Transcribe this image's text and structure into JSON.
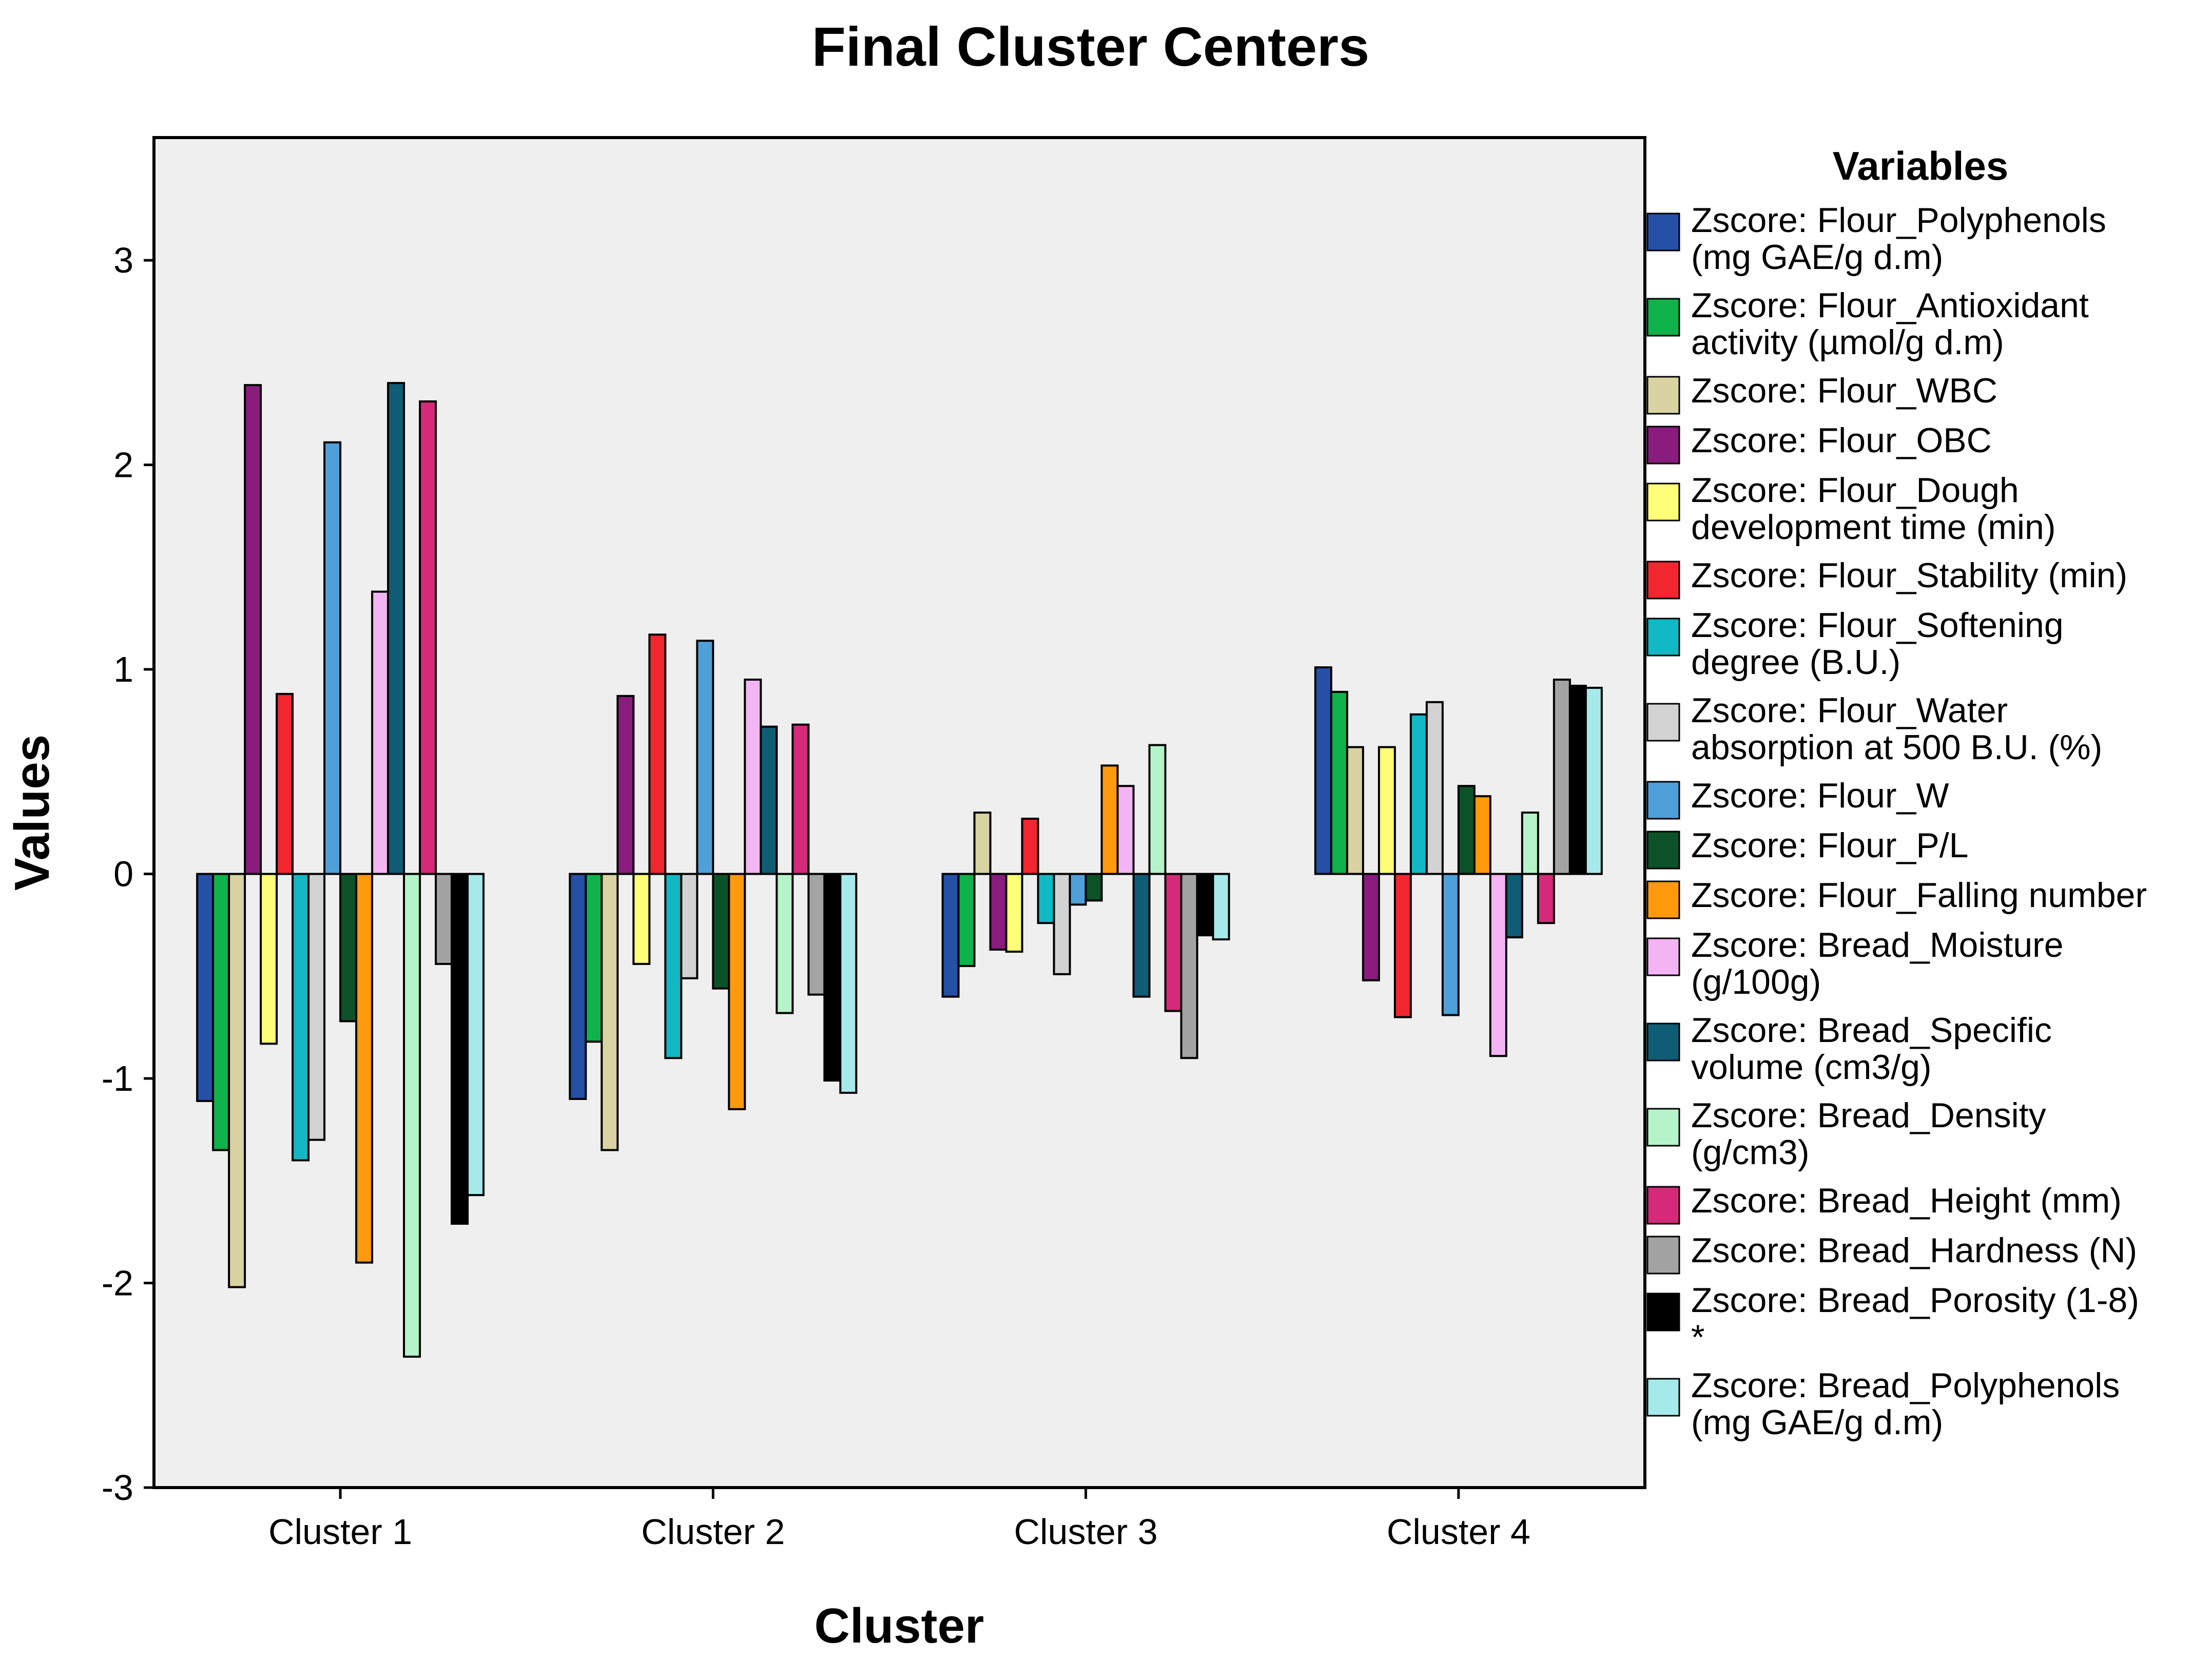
{
  "chart_data": {
    "type": "bar",
    "title": "Final Cluster Centers",
    "xlabel": "Cluster",
    "ylabel": "Values",
    "ylim": [
      -3,
      3.6
    ],
    "yticks": [
      -3,
      -2,
      -1,
      0,
      1,
      2,
      3
    ],
    "ytick_labels": [
      "-3",
      "-2",
      "-1",
      "0",
      "1",
      "2",
      "3"
    ],
    "categories": [
      "Cluster 1",
      "Cluster 2",
      "Cluster 3",
      "Cluster 4"
    ],
    "legend_title": "Variables",
    "legend_position": "right",
    "grid": false,
    "colors": {
      "plot_background": "#efefef",
      "bar_outline": "#000000"
    },
    "series": [
      {
        "name": "Zscore:  Flour_Polyphenols (mg GAE/g d.m)",
        "legend_lines": [
          "Zscore:  Flour_Polyphenols",
          "(mg GAE/g d.m)"
        ],
        "color": "#2450a6",
        "values": [
          -1.11,
          -1.1,
          -0.6,
          1.01
        ]
      },
      {
        "name": "Zscore:  Flour_Antioxidant activity (µmol/g d.m)",
        "legend_lines": [
          "Zscore:  Flour_Antioxidant",
          "activity (µmol/g d.m)"
        ],
        "color": "#0fb24b",
        "values": [
          -1.35,
          -0.82,
          -0.45,
          0.89
        ]
      },
      {
        "name": "Zscore:  Flour_WBC",
        "legend_lines": [
          "Zscore:  Flour_WBC"
        ],
        "color": "#d8d3a0",
        "values": [
          -2.02,
          -1.35,
          0.3,
          0.62
        ]
      },
      {
        "name": "Zscore:  Flour_OBC",
        "legend_lines": [
          "Zscore:  Flour_OBC"
        ],
        "color": "#8a1c7e",
        "values": [
          2.39,
          0.87,
          -0.37,
          -0.52
        ]
      },
      {
        "name": "Zscore:  Flour_Dough development time (min)",
        "legend_lines": [
          "Zscore:  Flour_Dough",
          "development time (min)"
        ],
        "color": "#ffff77",
        "values": [
          -0.83,
          -0.44,
          -0.38,
          0.62
        ]
      },
      {
        "name": "Zscore:  Flour_Stability (min)",
        "legend_lines": [
          "Zscore:  Flour_Stability (min)"
        ],
        "color": "#f2262e",
        "values": [
          0.88,
          1.17,
          0.27,
          -0.7
        ]
      },
      {
        "name": "Zscore:  Flour_Softening degree (B.U.)",
        "legend_lines": [
          "Zscore:  Flour_Softening",
          "degree (B.U.)"
        ],
        "color": "#12b8c4",
        "values": [
          -1.4,
          -0.9,
          -0.24,
          0.78
        ]
      },
      {
        "name": "Zscore:  Flour_Water absorption at 500 B.U. (%)",
        "legend_lines": [
          "Zscore:  Flour_Water",
          "absorption at 500 B.U. (%)"
        ],
        "color": "#d2d2d2",
        "values": [
          -1.3,
          -0.51,
          -0.49,
          0.84
        ]
      },
      {
        "name": "Zscore:  Flour_W",
        "legend_lines": [
          "Zscore:  Flour_W"
        ],
        "color": "#4f9fd9",
        "values": [
          2.11,
          1.14,
          -0.15,
          -0.69
        ]
      },
      {
        "name": "Zscore:  Flour_P/L",
        "legend_lines": [
          "Zscore:  Flour_P/L"
        ],
        "color": "#0b5228",
        "values": [
          -0.72,
          -0.56,
          -0.13,
          0.43
        ]
      },
      {
        "name": "Zscore:  Flour_Falling number",
        "legend_lines": [
          "Zscore:  Flour_Falling number"
        ],
        "color": "#ff9a0d",
        "values": [
          -1.9,
          -1.15,
          0.53,
          0.38
        ]
      },
      {
        "name": "Zscore:  Bread_Moisture (g/100g)",
        "legend_lines": [
          "Zscore:  Bread_Moisture",
          "(g/100g)"
        ],
        "color": "#f2b4f2",
        "values": [
          1.38,
          0.95,
          0.43,
          -0.89
        ]
      },
      {
        "name": "Zscore:  Bread_Specific volume (cm3/g)",
        "legend_lines": [
          "Zscore:  Bread_Specific",
          "volume (cm3/g)"
        ],
        "color": "#0f5c75",
        "values": [
          2.4,
          0.72,
          -0.6,
          -0.31
        ]
      },
      {
        "name": "Zscore:  Bread_Density (g/cm3)",
        "legend_lines": [
          "Zscore:  Bread_Density",
          "(g/cm3)"
        ],
        "color": "#b4f4c8",
        "values": [
          -2.36,
          -0.68,
          0.63,
          0.3
        ]
      },
      {
        "name": "Zscore:  Bread_Height (mm)",
        "legend_lines": [
          "Zscore:  Bread_Height (mm)"
        ],
        "color": "#d42a79",
        "values": [
          2.31,
          0.73,
          -0.67,
          -0.24
        ]
      },
      {
        "name": "Zscore:  Bread_Hardness (N)",
        "legend_lines": [
          "Zscore:  Bread_Hardness (N)"
        ],
        "color": "#a3a3a3",
        "values": [
          -0.44,
          -0.59,
          -0.9,
          0.95
        ]
      },
      {
        "name": "Zscore:  Bread_Porosity (1-8) *",
        "legend_lines": [
          "Zscore:  Bread_Porosity (1-8)",
          "*"
        ],
        "color": "#000000",
        "values": [
          -1.71,
          -1.01,
          -0.3,
          0.92
        ]
      },
      {
        "name": "Zscore:  Bread_Polyphenols (mg GAE/g d.m)",
        "legend_lines": [
          "Zscore:  Bread_Polyphenols",
          "(mg GAE/g d.m)"
        ],
        "color": "#a6e9ea",
        "values": [
          -1.57,
          -1.07,
          -0.32,
          0.91
        ]
      }
    ]
  }
}
